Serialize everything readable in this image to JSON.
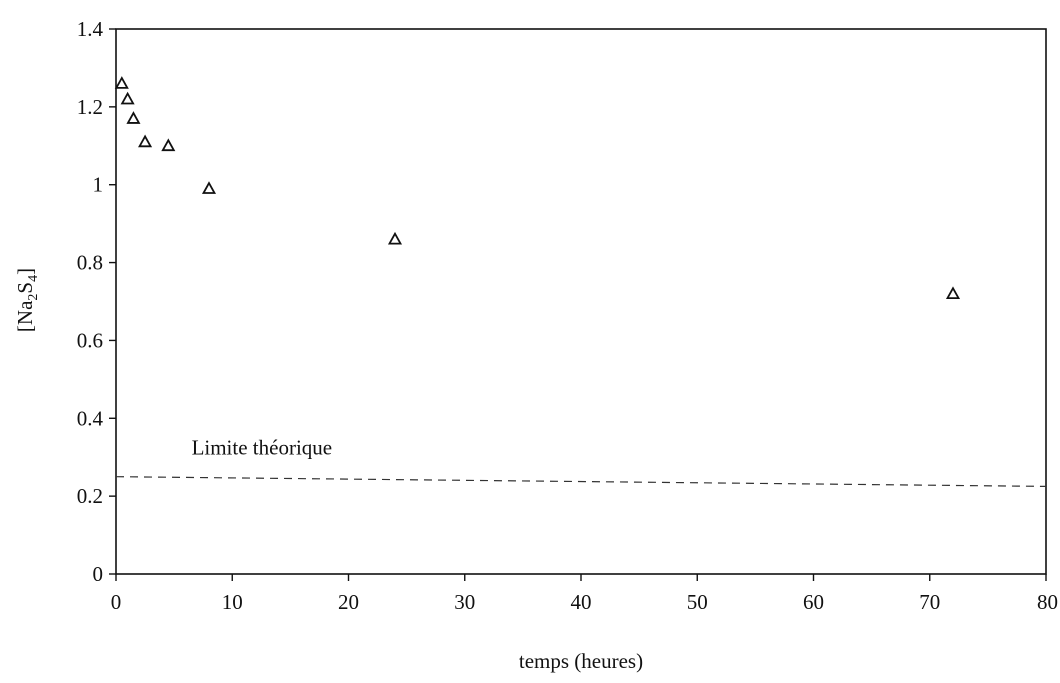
{
  "chart_data": {
    "type": "scatter",
    "title": "",
    "xlabel": "temps (heures)",
    "ylabel": {
      "base": "[Na",
      "sub1": "2",
      "mid": "S",
      "sub2": "4",
      "end": "]"
    },
    "xlim": [
      0,
      80
    ],
    "ylim": [
      0,
      1.4
    ],
    "x_ticks": [
      "0",
      "10",
      "20",
      "30",
      "40",
      "50",
      "60",
      "70",
      "80"
    ],
    "y_ticks": [
      "0",
      "0.2",
      "0.4",
      "0.6",
      "0.8",
      "1",
      "1.2",
      "1.4"
    ],
    "grid": false,
    "legend": "none",
    "marker": "open-triangle",
    "series": [
      {
        "points": [
          {
            "x": 0.5,
            "y": 1.26
          },
          {
            "x": 1.0,
            "y": 1.22
          },
          {
            "x": 1.5,
            "y": 1.17
          },
          {
            "x": 2.5,
            "y": 1.11
          },
          {
            "x": 4.5,
            "y": 1.1
          },
          {
            "x": 8.0,
            "y": 0.99
          },
          {
            "x": 24.0,
            "y": 0.86
          },
          {
            "x": 72.0,
            "y": 0.72
          }
        ]
      }
    ],
    "reference_line": {
      "label": "Limite théorique",
      "y": 0.25,
      "style": "dashed"
    }
  }
}
